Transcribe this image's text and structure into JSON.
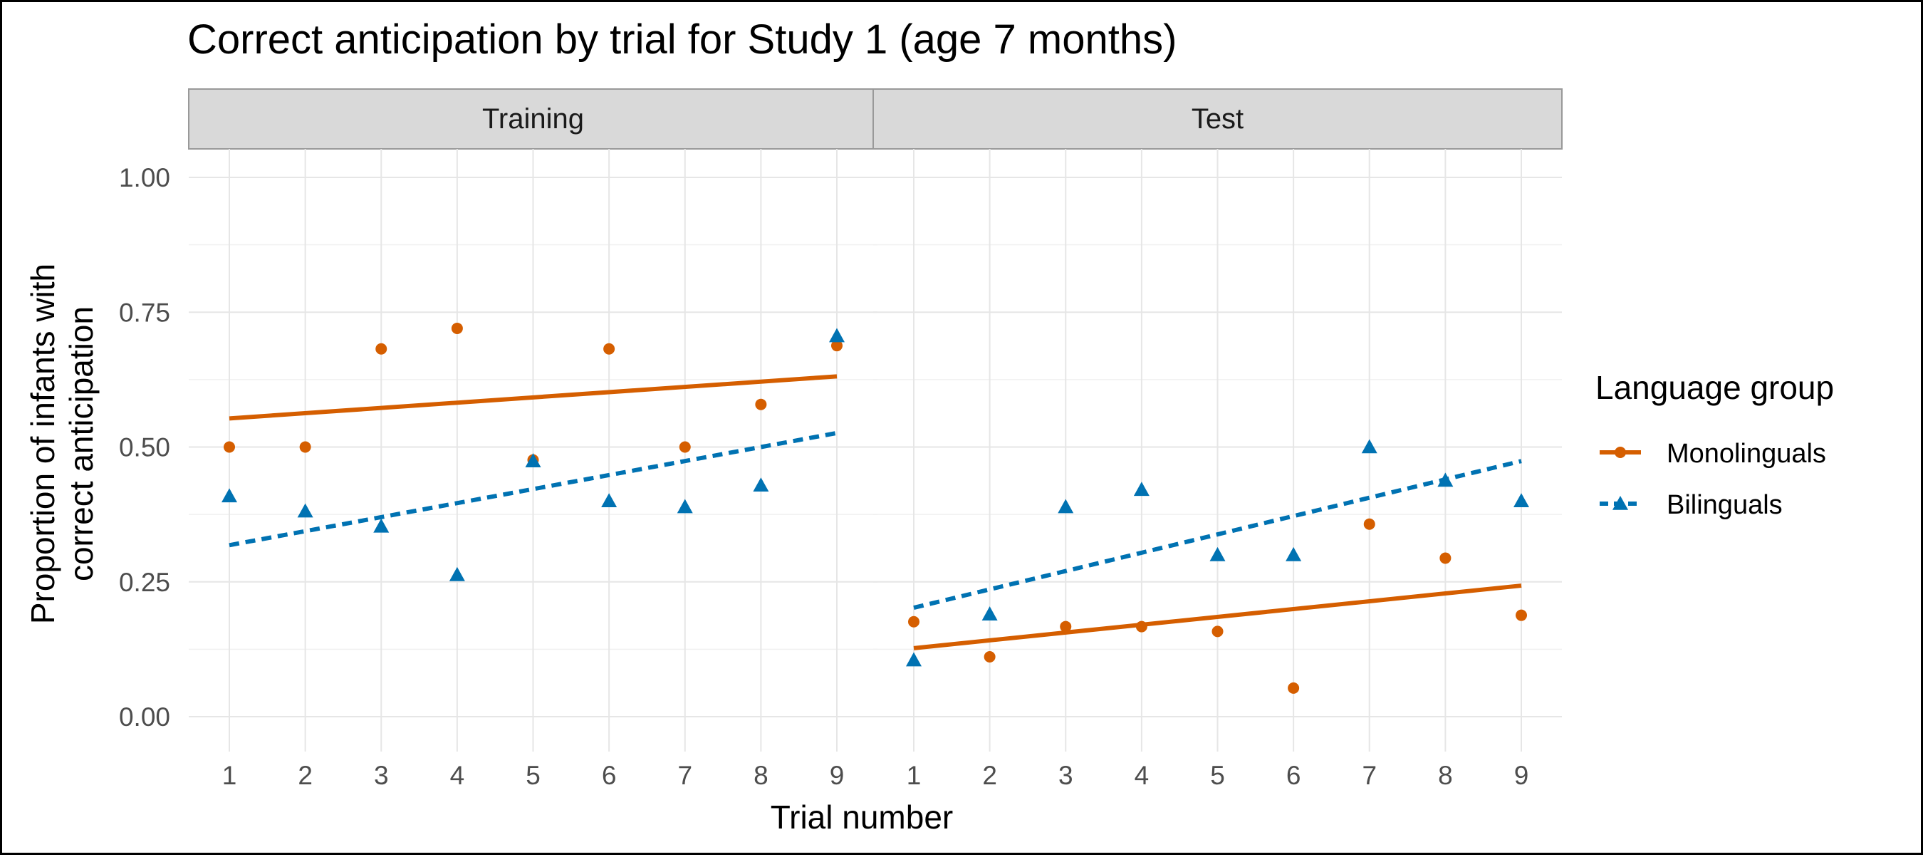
{
  "chart_data": {
    "type": "scatter",
    "title": "Correct anticipation by trial for Study 1 (age 7 months)",
    "xlabel": "Trial number",
    "ylabel_lines": [
      "Proportion of infants with",
      "correct anticipation"
    ],
    "ylim": [
      0,
      1
    ],
    "xlim": [
      1,
      9
    ],
    "x_ticks": [
      "1",
      "2",
      "3",
      "4",
      "5",
      "6",
      "7",
      "8",
      "9"
    ],
    "y_ticks": [
      {
        "value": 0,
        "label": "0.00"
      },
      {
        "value": 0.25,
        "label": "0.25"
      },
      {
        "value": 0.5,
        "label": "0.50"
      },
      {
        "value": 0.75,
        "label": "0.75"
      },
      {
        "value": 1,
        "label": "1.00"
      }
    ],
    "grid": true,
    "legend": {
      "title": "Language group",
      "position": "right",
      "entries": [
        {
          "name": "Monolinguals",
          "color": "#D55E00",
          "marker": "circle",
          "line": "solid"
        },
        {
          "name": "Bilinguals",
          "color": "#0072B2",
          "marker": "triangle",
          "line": "dashed"
        }
      ]
    },
    "panels": [
      {
        "name": "Training",
        "x": [
          1,
          2,
          3,
          4,
          5,
          6,
          7,
          8,
          9
        ],
        "series": [
          {
            "name": "Monolinguals",
            "values": [
              0.5,
              0.5,
              0.682,
              0.72,
              0.476,
              0.682,
              0.5,
              0.579,
              0.688
            ],
            "trend": [
              0.553,
              0.631
            ]
          },
          {
            "name": "Bilinguals",
            "values": [
              0.409,
              0.381,
              0.353,
              0.263,
              0.474,
              0.4,
              0.389,
              0.429,
              0.706
            ],
            "trend": [
              0.318,
              0.526
            ]
          }
        ]
      },
      {
        "name": "Test",
        "x": [
          1,
          2,
          3,
          4,
          5,
          6,
          7,
          8,
          9
        ],
        "series": [
          {
            "name": "Monolinguals",
            "values": [
              0.176,
              0.111,
              0.167,
              0.167,
              0.158,
              0.053,
              0.357,
              0.294,
              0.188
            ],
            "trend": [
              0.127,
              0.243
            ]
          },
          {
            "name": "Bilinguals",
            "values": [
              0.105,
              0.19,
              0.389,
              0.421,
              0.3,
              0.3,
              0.5,
              0.438,
              0.4
            ],
            "trend": [
              0.202,
              0.474
            ]
          }
        ]
      }
    ]
  }
}
